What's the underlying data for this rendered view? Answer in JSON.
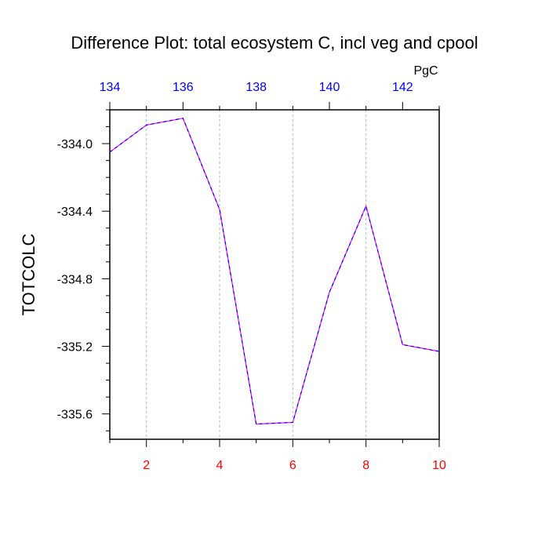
{
  "chart_data": {
    "type": "line",
    "title": "Difference Plot: total ecosystem C, incl veg and cpool",
    "ylabel": "TOTCOLC",
    "xlabel": "",
    "top_axis_units": "PgC",
    "x": [
      1,
      2,
      3,
      4,
      5,
      6,
      7,
      8,
      9,
      10
    ],
    "series": [
      {
        "values": [
          -334.05,
          -333.89,
          -333.85,
          -334.39,
          -335.66,
          -335.65,
          -334.88,
          -334.37,
          -335.19,
          -335.23
        ]
      }
    ],
    "xlim": [
      1,
      10
    ],
    "ylim": [
      -335.75,
      -333.8
    ],
    "bottom_ticks": [
      2,
      4,
      6,
      8,
      10
    ],
    "bottom_tick_labels": [
      "2",
      "4",
      "6",
      "8",
      "10"
    ],
    "top_ticks": [
      1,
      3,
      5,
      7,
      9
    ],
    "top_tick_labels": [
      "134",
      "136",
      "138",
      "140",
      "142"
    ],
    "y_ticks": [
      -334.0,
      -334.4,
      -334.8,
      -335.2,
      -335.6
    ],
    "y_tick_labels": [
      "-334.0",
      "-334.4",
      "-334.8",
      "-335.2",
      "-335.6"
    ],
    "y_minor_step": 0.1,
    "grid": "vertical dashed at bottom ticks",
    "colors": {
      "bottom_tick_labels": "#ff0000",
      "top_tick_labels": "#0000ff",
      "line_primary": "#ff00ff",
      "line_dash": "#0000ff",
      "grid": "#b4b4b4",
      "axis": "#000000"
    }
  }
}
